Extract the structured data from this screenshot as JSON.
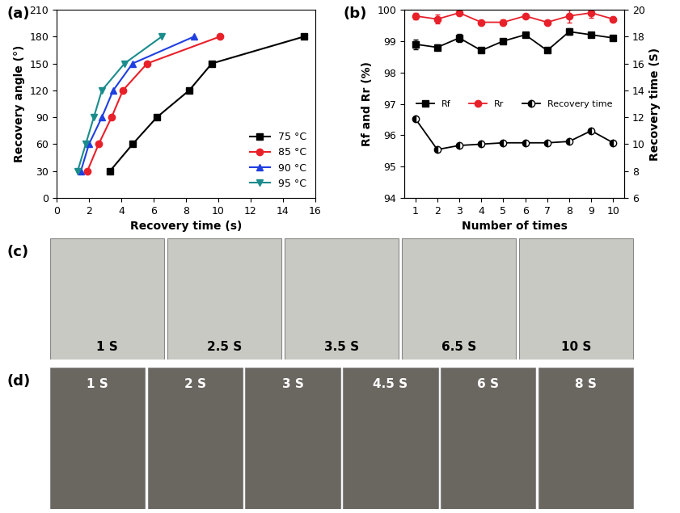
{
  "chart_data": [
    {
      "type": "line",
      "annotations": [
        "(a)"
      ],
      "x_label": "Recovery time (s)",
      "y_label": "Recovery angle (°)",
      "xlim": [
        0,
        16
      ],
      "xticks": [
        0,
        2,
        4,
        6,
        8,
        10,
        12,
        14,
        16
      ],
      "ylim": [
        0,
        210
      ],
      "yticks": [
        0,
        30,
        60,
        90,
        120,
        150,
        180,
        210
      ],
      "legend": "lower right",
      "series": [
        {
          "name": "75 °C",
          "color": "#000000",
          "marker": "square",
          "x": [
            3.3,
            4.7,
            6.2,
            8.2,
            9.6,
            15.3
          ],
          "values": [
            30,
            60,
            90,
            120,
            150,
            180
          ]
        },
        {
          "name": "85 °C",
          "color": "#e8202a",
          "marker": "circle",
          "x": [
            1.9,
            2.6,
            3.4,
            4.1,
            5.6,
            10.1
          ],
          "values": [
            30,
            60,
            90,
            120,
            150,
            180
          ]
        },
        {
          "name": "90 °C",
          "color": "#1f3fe0",
          "marker": "triangle_up",
          "x": [
            1.5,
            2.0,
            2.8,
            3.5,
            4.7,
            8.5
          ],
          "values": [
            30,
            60,
            90,
            120,
            150,
            180
          ]
        },
        {
          "name": "95 °C",
          "color": "#1a8c8c",
          "marker": "triangle_down",
          "x": [
            1.3,
            1.8,
            2.3,
            2.8,
            4.2,
            6.5
          ],
          "values": [
            30,
            60,
            90,
            120,
            150,
            180
          ]
        }
      ]
    },
    {
      "type": "line",
      "annotations": [
        "(b)"
      ],
      "x_label": "Number of times",
      "y_label": "Rf and Rr (%)",
      "y2_label": "Recovery time (S)",
      "xlim": [
        0.5,
        10.5
      ],
      "xticks": [
        1,
        2,
        3,
        4,
        5,
        6,
        7,
        8,
        9,
        10
      ],
      "ylim": [
        94,
        100
      ],
      "yticks": [
        94,
        95,
        96,
        97,
        98,
        99,
        100
      ],
      "y2lim": [
        6,
        20
      ],
      "y2ticks": [
        6,
        8,
        10,
        12,
        14,
        16,
        18,
        20
      ],
      "legend": "center",
      "series": [
        {
          "name": "Rf",
          "color": "#000000",
          "marker": "square",
          "x": [
            1,
            2,
            3,
            4,
            5,
            6,
            7,
            8,
            9,
            10
          ],
          "values": [
            98.9,
            98.8,
            99.1,
            98.7,
            99.0,
            99.2,
            98.7,
            99.3,
            99.2,
            99.1
          ],
          "errors": [
            0.15,
            0.1,
            0.12,
            0.05,
            0.05,
            0.08,
            0.05,
            0.1,
            0.08,
            0.08
          ]
        },
        {
          "name": "Rr",
          "color": "#e8202a",
          "marker": "circle",
          "x": [
            1,
            2,
            3,
            4,
            5,
            6,
            7,
            8,
            9,
            10
          ],
          "values": [
            99.8,
            99.7,
            99.9,
            99.6,
            99.6,
            99.8,
            99.6,
            99.8,
            99.9,
            99.7
          ],
          "errors": [
            0.1,
            0.15,
            0.08,
            0.05,
            0.08,
            0.05,
            0.05,
            0.2,
            0.15,
            0.08
          ]
        },
        {
          "name": "Recovery time",
          "color": "#000000",
          "marker": "circle_half",
          "axis": "y2",
          "x": [
            1,
            2,
            3,
            4,
            5,
            6,
            7,
            8,
            9,
            10
          ],
          "values": [
            11.9,
            9.6,
            9.9,
            10.0,
            10.1,
            10.1,
            10.1,
            10.2,
            11.0,
            10.1
          ]
        }
      ]
    }
  ],
  "photo_panels": [
    {
      "label": "(c)",
      "frames": [
        "1 S",
        "2.5 S",
        "3.5 S",
        "6.5 S",
        "10 S"
      ]
    },
    {
      "label": "(d)",
      "frames": [
        "1 S",
        "2 S",
        "3 S",
        "4.5 S",
        "6 S",
        "8 S"
      ]
    }
  ]
}
